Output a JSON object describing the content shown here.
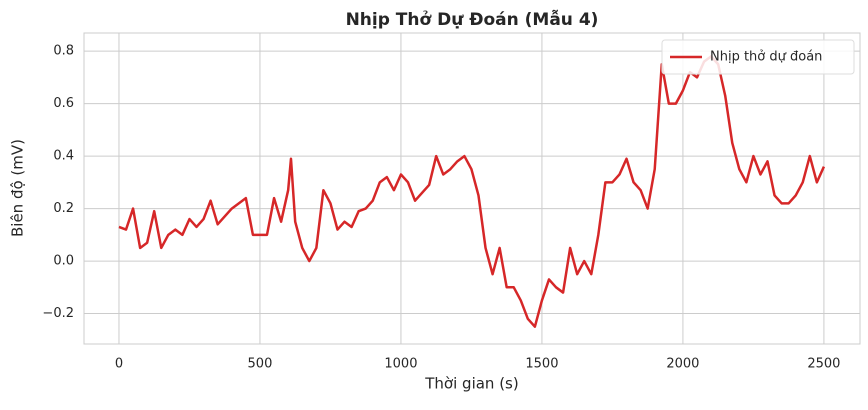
{
  "chart_data": {
    "type": "line",
    "title": "Nhịp Thở Dự Đoán (Mẫu 4)",
    "xlabel": "Thời gian (s)",
    "ylabel": "Biên độ (mV)",
    "x": [
      0,
      25,
      50,
      75,
      100,
      125,
      150,
      175,
      200,
      225,
      250,
      275,
      300,
      325,
      350,
      375,
      400,
      425,
      450,
      475,
      500,
      525,
      550,
      575,
      600,
      610,
      625,
      650,
      675,
      700,
      725,
      750,
      775,
      800,
      825,
      850,
      875,
      900,
      925,
      950,
      975,
      1000,
      1025,
      1050,
      1075,
      1100,
      1125,
      1150,
      1175,
      1200,
      1225,
      1250,
      1275,
      1300,
      1325,
      1350,
      1375,
      1400,
      1425,
      1450,
      1475,
      1500,
      1525,
      1550,
      1575,
      1600,
      1625,
      1650,
      1675,
      1700,
      1725,
      1750,
      1775,
      1800,
      1825,
      1850,
      1875,
      1900,
      1925,
      1950,
      1975,
      2000,
      2025,
      2050,
      2075,
      2100,
      2125,
      2150,
      2175,
      2200,
      2225,
      2250,
      2275,
      2300,
      2325,
      2350,
      2375,
      2400,
      2425,
      2450,
      2475,
      2500
    ],
    "series": [
      {
        "name": "Nhịp thở dự đoán",
        "color": "#d62728",
        "values": [
          0.13,
          0.12,
          0.2,
          0.05,
          0.07,
          0.19,
          0.05,
          0.1,
          0.12,
          0.1,
          0.16,
          0.13,
          0.16,
          0.23,
          0.14,
          0.17,
          0.2,
          0.22,
          0.24,
          0.1,
          0.1,
          0.1,
          0.24,
          0.15,
          0.27,
          0.39,
          0.15,
          0.05,
          0.0,
          0.05,
          0.27,
          0.22,
          0.12,
          0.15,
          0.13,
          0.19,
          0.2,
          0.23,
          0.3,
          0.32,
          0.27,
          0.33,
          0.3,
          0.23,
          0.26,
          0.29,
          0.4,
          0.33,
          0.35,
          0.38,
          0.4,
          0.35,
          0.25,
          0.05,
          -0.05,
          0.05,
          -0.1,
          -0.1,
          -0.15,
          -0.22,
          -0.25,
          -0.15,
          -0.07,
          -0.1,
          -0.12,
          0.05,
          -0.05,
          0.0,
          -0.05,
          0.1,
          0.3,
          0.3,
          0.33,
          0.39,
          0.3,
          0.27,
          0.2,
          0.35,
          0.75,
          0.6,
          0.6,
          0.65,
          0.72,
          0.7,
          0.76,
          0.78,
          0.75,
          0.63,
          0.45,
          0.35,
          0.3,
          0.4,
          0.33,
          0.38,
          0.25,
          0.22,
          0.22,
          0.25,
          0.3,
          0.4,
          0.3,
          0.36
        ]
      }
    ],
    "xlim": [
      -124,
      2628
    ],
    "ylim": [
      -0.316,
      0.869
    ],
    "xticks": [
      0,
      500,
      1000,
      1500,
      2000,
      2500
    ],
    "yticks": [
      {
        "value": -0.2,
        "label": "−0.2"
      },
      {
        "value": 0,
        "label": "0.0"
      },
      0.2,
      0.4,
      0.6,
      0.8
    ],
    "grid": true,
    "legend": "upper right"
  }
}
